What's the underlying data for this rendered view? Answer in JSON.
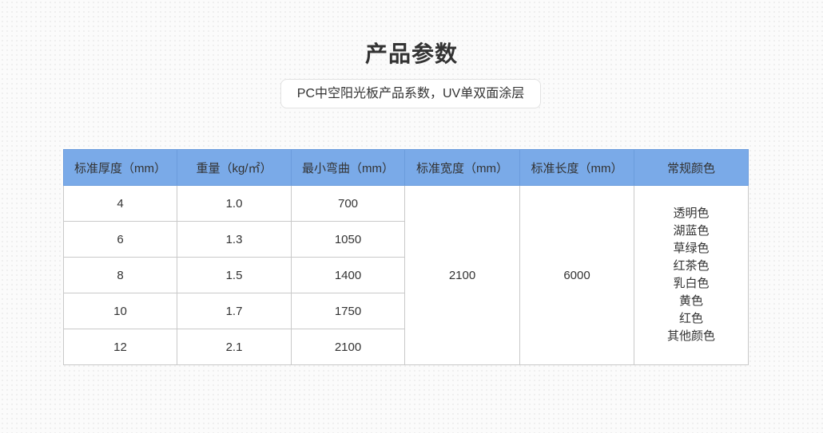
{
  "title": "产品参数",
  "subtitle": "PC中空阳光板产品系数，UV单双面涂层",
  "colors": {
    "header_bg": "#7aaae8"
  },
  "table": {
    "headers": [
      "标准厚度（mm）",
      "重量（kg/㎡）",
      "最小弯曲（mm）",
      "标准宽度（mm）",
      "标准长度（mm）",
      "常规颜色"
    ],
    "rows": [
      {
        "thickness": "4",
        "weight": "1.0",
        "bend": "700"
      },
      {
        "thickness": "6",
        "weight": "1.3",
        "bend": "1050"
      },
      {
        "thickness": "8",
        "weight": "1.5",
        "bend": "1400"
      },
      {
        "thickness": "10",
        "weight": "1.7",
        "bend": "1750"
      },
      {
        "thickness": "12",
        "weight": "2.1",
        "bend": "2100"
      }
    ],
    "width": "2100",
    "length": "6000",
    "color_options": [
      "透明色",
      "湖蓝色",
      "草绿色",
      "红茶色",
      "乳白色",
      "黄色",
      "红色",
      "其他颜色"
    ]
  }
}
